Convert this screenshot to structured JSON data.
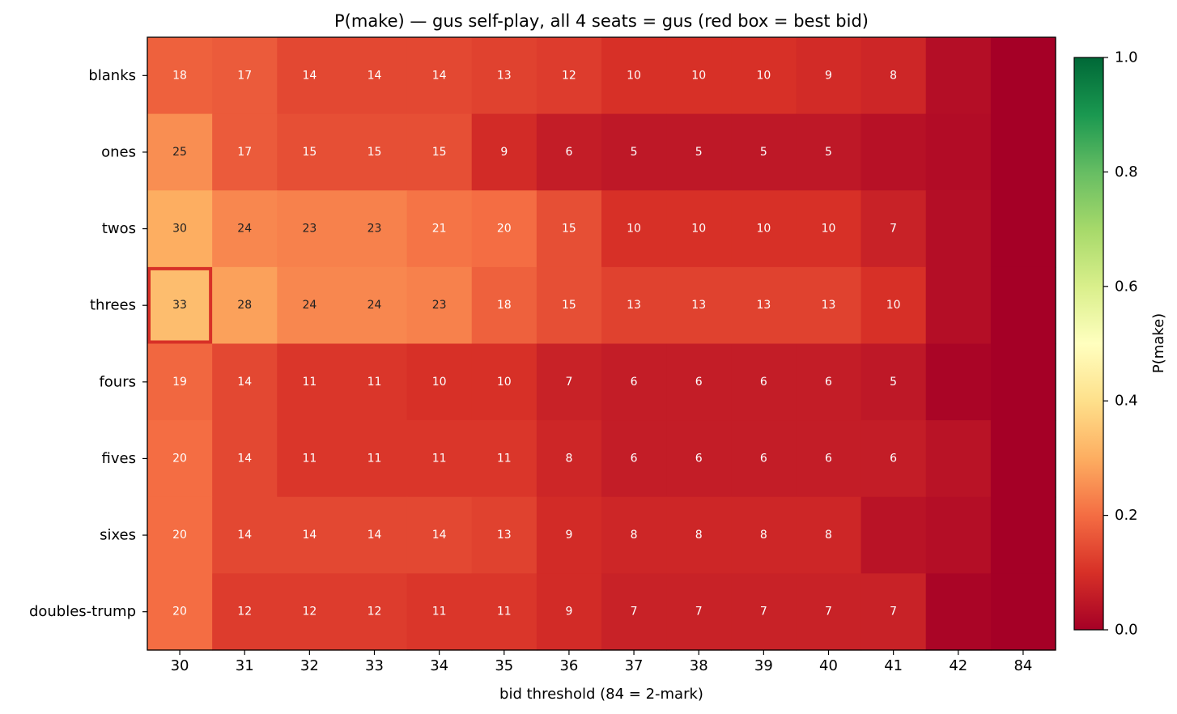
{
  "chart_data": {
    "type": "heatmap",
    "title": "P(make) — gus self-play, all 4 seats = gus  (red box = best bid)",
    "xlabel": "bid threshold (84 = 2-mark)",
    "ylabel": "",
    "x": [
      "30",
      "31",
      "32",
      "33",
      "34",
      "35",
      "36",
      "37",
      "38",
      "39",
      "40",
      "41",
      "42",
      "84"
    ],
    "y": [
      "blanks",
      "ones",
      "twos",
      "threes",
      "fours",
      "fives",
      "sixes",
      "doubles-trump"
    ],
    "values": [
      [
        0.18,
        0.17,
        0.14,
        0.14,
        0.14,
        0.13,
        0.12,
        0.1,
        0.1,
        0.1,
        0.09,
        0.08,
        0.03,
        0.0
      ],
      [
        0.25,
        0.17,
        0.15,
        0.15,
        0.15,
        0.09,
        0.06,
        0.05,
        0.05,
        0.05,
        0.05,
        0.035,
        0.025,
        0.0
      ],
      [
        0.3,
        0.24,
        0.23,
        0.23,
        0.21,
        0.2,
        0.15,
        0.1,
        0.1,
        0.1,
        0.1,
        0.07,
        0.03,
        0.0
      ],
      [
        0.33,
        0.28,
        0.24,
        0.24,
        0.23,
        0.18,
        0.15,
        0.13,
        0.13,
        0.13,
        0.13,
        0.1,
        0.03,
        0.0
      ],
      [
        0.19,
        0.14,
        0.11,
        0.11,
        0.1,
        0.1,
        0.07,
        0.06,
        0.06,
        0.06,
        0.06,
        0.05,
        0.01,
        0.0
      ],
      [
        0.2,
        0.14,
        0.11,
        0.11,
        0.11,
        0.11,
        0.08,
        0.06,
        0.06,
        0.06,
        0.06,
        0.06,
        0.04,
        0.0
      ],
      [
        0.2,
        0.14,
        0.14,
        0.14,
        0.14,
        0.13,
        0.09,
        0.08,
        0.08,
        0.08,
        0.08,
        0.04,
        0.03,
        0.0
      ],
      [
        0.2,
        0.12,
        0.12,
        0.12,
        0.11,
        0.11,
        0.09,
        0.07,
        0.07,
        0.07,
        0.07,
        0.07,
        0.01,
        0.0
      ]
    ],
    "cell_labels": [
      [
        "18",
        "17",
        "14",
        "14",
        "14",
        "13",
        "12",
        "10",
        "10",
        "10",
        "9",
        "8",
        "",
        ""
      ],
      [
        "25",
        "17",
        "15",
        "15",
        "15",
        "9",
        "6",
        "5",
        "5",
        "5",
        "5",
        "",
        "",
        ""
      ],
      [
        "30",
        "24",
        "23",
        "23",
        "21",
        "20",
        "15",
        "10",
        "10",
        "10",
        "10",
        "7",
        "",
        ""
      ],
      [
        "33",
        "28",
        "24",
        "24",
        "23",
        "18",
        "15",
        "13",
        "13",
        "13",
        "13",
        "10",
        "",
        ""
      ],
      [
        "19",
        "14",
        "11",
        "11",
        "10",
        "10",
        "7",
        "6",
        "6",
        "6",
        "6",
        "5",
        "",
        ""
      ],
      [
        "20",
        "14",
        "11",
        "11",
        "11",
        "11",
        "8",
        "6",
        "6",
        "6",
        "6",
        "6",
        "",
        ""
      ],
      [
        "20",
        "14",
        "14",
        "14",
        "14",
        "13",
        "9",
        "8",
        "8",
        "8",
        "8",
        "",
        "",
        ""
      ],
      [
        "20",
        "12",
        "12",
        "12",
        "11",
        "11",
        "9",
        "7",
        "7",
        "7",
        "7",
        "7",
        "",
        ""
      ]
    ],
    "best_bid": {
      "row": "threes",
      "column": "30"
    },
    "best_box_color": "#d73027",
    "colormap": "RdYlGn",
    "colormap_stops": [
      "#a50026",
      "#d73027",
      "#f46d43",
      "#fdae61",
      "#fee08b",
      "#ffffbf",
      "#d9ef8b",
      "#a6d96a",
      "#66bd63",
      "#1a9850",
      "#006837"
    ],
    "vmin": 0.0,
    "vmax": 1.0,
    "colorbar": {
      "label": "P(make)",
      "ticks": [
        0.0,
        0.2,
        0.4,
        0.6,
        0.8,
        1.0
      ],
      "tick_labels": [
        "0.0",
        "0.2",
        "0.4",
        "0.6",
        "0.8",
        "1.0"
      ]
    },
    "grid": false
  }
}
